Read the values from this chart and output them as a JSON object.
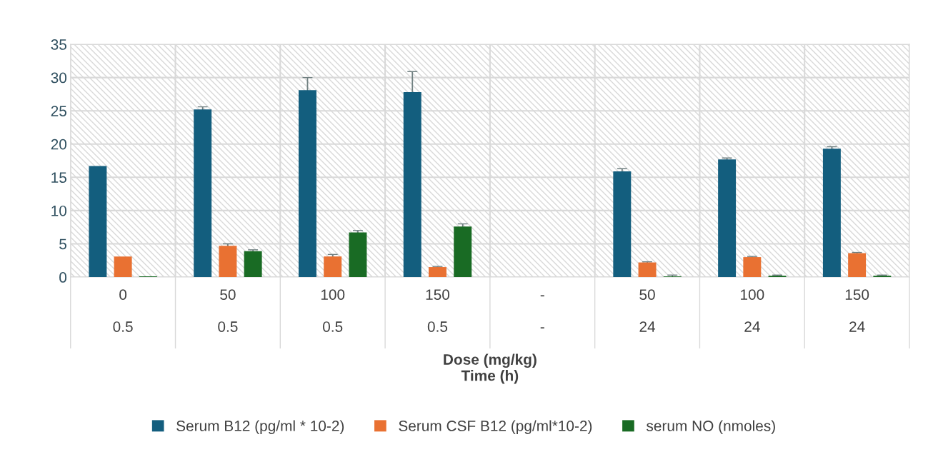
{
  "chart_data": {
    "type": "bar",
    "xlabel": "Dose (mg/kg)\nTime (h)",
    "categories": [
      "0\n\n0.5",
      "50\n\n0.5",
      "100\n\n0.5",
      "150\n\n0.5",
      "-\n\n-",
      "50\n\n24",
      "100\n\n24",
      "150\n\n24"
    ],
    "series": [
      {
        "name": "Serum B12 (pg/ml * 10-2)",
        "color": "#135e7e",
        "values": [
          16.7,
          25.2,
          28.1,
          27.8,
          null,
          15.9,
          17.7,
          19.3
        ],
        "errors": [
          null,
          0.4,
          1.9,
          3.1,
          null,
          0.4,
          0.2,
          0.3
        ]
      },
      {
        "name": "Serum CSF B12 (pg/ml*10-2)",
        "color": "#e97132",
        "values": [
          3.1,
          4.7,
          3.1,
          1.5,
          null,
          2.2,
          3.0,
          3.6
        ],
        "errors": [
          null,
          0.3,
          0.3,
          0.1,
          null,
          0.1,
          0.1,
          0.1
        ]
      },
      {
        "name": "serum NO (nmoles)",
        "color": "#196b24",
        "values": [
          0.1,
          3.9,
          6.7,
          7.6,
          null,
          0.1,
          0.2,
          0.2
        ],
        "errors": [
          null,
          0.2,
          0.3,
          0.4,
          null,
          0.2,
          0.1,
          0.1
        ]
      }
    ],
    "ylim": [
      0,
      35
    ],
    "yticks": [
      0,
      5,
      10,
      15,
      20,
      25,
      30,
      35
    ],
    "grid": true,
    "legend": "bottom"
  }
}
